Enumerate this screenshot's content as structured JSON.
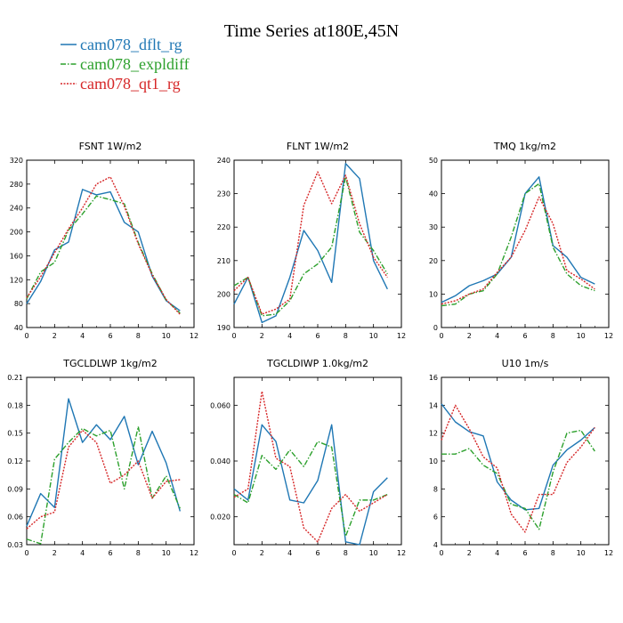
{
  "figure_title": "Time Series at180E,45N",
  "legend": [
    {
      "name": "cam078_dflt_rg",
      "color": "#1f77b4",
      "dash": "solid"
    },
    {
      "name": "cam078_expldiff",
      "color": "#2ca02c",
      "dash": "dashdot"
    },
    {
      "name": "cam078_qt1_rg",
      "color": "#d62728",
      "dash": "dotted"
    }
  ],
  "chart_data": [
    {
      "type": "line",
      "title": "FSNT   1W/m2",
      "x": [
        0,
        1,
        2,
        3,
        4,
        5,
        6,
        7,
        8,
        9,
        10,
        11
      ],
      "xlim": [
        0,
        12
      ],
      "ylim": [
        40,
        320
      ],
      "xticks": [
        0,
        2,
        4,
        6,
        8,
        10,
        12
      ],
      "yticks": [
        "40",
        "80",
        "120",
        "160",
        "200",
        "240",
        "280",
        "320"
      ],
      "series": [
        {
          "name": "cam078_dflt_rg",
          "values": [
            80,
            117,
            170,
            183,
            271,
            262,
            267,
            216,
            200,
            126,
            85,
            68
          ]
        },
        {
          "name": "cam078_expldiff",
          "values": [
            88,
            133,
            149,
            203,
            230,
            260,
            254,
            247,
            182,
            130,
            86,
            64
          ]
        },
        {
          "name": "cam078_qt1_rg",
          "values": [
            90,
            125,
            165,
            205,
            240,
            280,
            292,
            243,
            180,
            128,
            87,
            62
          ]
        }
      ]
    },
    {
      "type": "line",
      "title": "FLNT   1W/m2",
      "x": [
        0,
        1,
        2,
        3,
        4,
        5,
        6,
        7,
        8,
        9,
        10,
        11
      ],
      "xlim": [
        0,
        12
      ],
      "ylim": [
        190,
        240
      ],
      "xticks": [
        0,
        2,
        4,
        6,
        8,
        10,
        12
      ],
      "yticks": [
        "190",
        "200",
        "210",
        "220",
        "230",
        "240"
      ],
      "series": [
        {
          "name": "cam078_dflt_rg",
          "values": [
            197,
            205,
            191.5,
            193.5,
            205,
            219,
            213,
            203.5,
            239,
            234.5,
            210,
            201.5
          ]
        },
        {
          "name": "cam078_expldiff",
          "values": [
            202.5,
            205,
            193.5,
            194,
            198,
            206,
            209,
            214,
            235,
            218.5,
            213,
            206
          ]
        },
        {
          "name": "cam078_qt1_rg",
          "values": [
            201,
            205,
            194,
            195.5,
            198.5,
            226.5,
            236.5,
            227,
            235.5,
            221,
            211,
            205
          ]
        }
      ]
    },
    {
      "type": "line",
      "title": "TMQ   1kg/m2",
      "x": [
        0,
        1,
        2,
        3,
        4,
        5,
        6,
        7,
        8,
        9,
        10,
        11
      ],
      "xlim": [
        0,
        12
      ],
      "ylim": [
        0,
        50
      ],
      "xticks": [
        0,
        2,
        4,
        6,
        8,
        10,
        12
      ],
      "yticks": [
        "0",
        "10",
        "20",
        "30",
        "40",
        "50"
      ],
      "series": [
        {
          "name": "cam078_dflt_rg",
          "values": [
            7.5,
            9.5,
            12.5,
            14,
            16,
            21,
            40,
            45,
            24.5,
            21,
            15,
            13
          ]
        },
        {
          "name": "cam078_expldiff",
          "values": [
            6.5,
            7,
            10,
            11,
            16,
            27,
            40,
            43,
            24,
            16,
            12.5,
            11
          ]
        },
        {
          "name": "cam078_qt1_rg",
          "values": [
            7,
            8,
            10,
            11.5,
            16.5,
            21,
            29,
            39,
            31,
            17,
            14.5,
            11.5
          ]
        }
      ]
    },
    {
      "type": "line",
      "title": "TGCLDLWP   1kg/m2",
      "x": [
        0,
        1,
        2,
        3,
        4,
        5,
        6,
        7,
        8,
        9,
        10,
        11
      ],
      "xlim": [
        0,
        12
      ],
      "ylim": [
        0.03,
        0.21
      ],
      "xticks": [
        0,
        2,
        4,
        6,
        8,
        10,
        12
      ],
      "yticks": [
        "0.03",
        "0.06",
        "0.09",
        "0.12",
        "0.15",
        "0.18",
        "0.21"
      ],
      "series": [
        {
          "name": "cam078_dflt_rg",
          "values": [
            0.05,
            0.085,
            0.07,
            0.187,
            0.14,
            0.159,
            0.143,
            0.168,
            0.116,
            0.152,
            0.118,
            0.066
          ]
        },
        {
          "name": "cam078_expldiff",
          "values": [
            0.036,
            0.031,
            0.122,
            0.14,
            0.155,
            0.147,
            0.153,
            0.09,
            0.157,
            0.08,
            0.104,
            0.069
          ]
        },
        {
          "name": "cam078_qt1_rg",
          "values": [
            0.047,
            0.06,
            0.065,
            0.135,
            0.153,
            0.14,
            0.096,
            0.105,
            0.12,
            0.08,
            0.098,
            0.1
          ]
        }
      ]
    },
    {
      "type": "line",
      "title": "TGCLDIWP   1.0kg/m2",
      "x": [
        0,
        1,
        2,
        3,
        4,
        5,
        6,
        7,
        8,
        9,
        10,
        11
      ],
      "xlim": [
        0,
        12
      ],
      "ylim": [
        0.01,
        0.07
      ],
      "xticks": [
        0,
        2,
        4,
        6,
        8,
        10,
        12
      ],
      "yticks": [
        "0.020",
        "0.040",
        "0.060"
      ],
      "series": [
        {
          "name": "cam078_dflt_rg",
          "values": [
            0.03,
            0.026,
            0.053,
            0.047,
            0.026,
            0.025,
            0.033,
            0.053,
            0.011,
            0.01,
            0.029,
            0.034
          ]
        },
        {
          "name": "cam078_expldiff",
          "values": [
            0.028,
            0.025,
            0.042,
            0.037,
            0.044,
            0.038,
            0.047,
            0.045,
            0.013,
            0.026,
            0.026,
            0.028
          ]
        },
        {
          "name": "cam078_qt1_rg",
          "values": [
            0.027,
            0.03,
            0.065,
            0.041,
            0.038,
            0.016,
            0.011,
            0.023,
            0.028,
            0.022,
            0.025,
            0.028
          ]
        }
      ]
    },
    {
      "type": "line",
      "title": "U10   1m/s",
      "x": [
        0,
        1,
        2,
        3,
        4,
        5,
        6,
        7,
        8,
        9,
        10,
        11
      ],
      "xlim": [
        0,
        12
      ],
      "ylim": [
        4,
        16
      ],
      "xticks": [
        0,
        2,
        4,
        6,
        8,
        10,
        12
      ],
      "yticks": [
        "4",
        "6",
        "8",
        "10",
        "12",
        "14",
        "16"
      ],
      "series": [
        {
          "name": "cam078_dflt_rg",
          "values": [
            14.1,
            12.8,
            12.1,
            11.8,
            8.5,
            7.2,
            6.5,
            6.6,
            9.7,
            10.8,
            11.5,
            12.4
          ]
        },
        {
          "name": "cam078_expldiff",
          "values": [
            10.5,
            10.5,
            10.9,
            9.7,
            9.1,
            6.9,
            6.6,
            5.1,
            9.2,
            12,
            12.2,
            10.7
          ]
        },
        {
          "name": "cam078_qt1_rg",
          "values": [
            11.5,
            14,
            12.3,
            10.3,
            9.5,
            6.2,
            4.9,
            7.6,
            7.6,
            9.9,
            11,
            12.4
          ]
        }
      ]
    }
  ]
}
